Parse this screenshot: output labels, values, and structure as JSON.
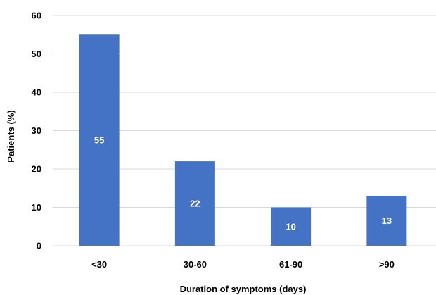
{
  "chart_data": {
    "type": "bar",
    "categories": [
      "<30",
      "30-60",
      "61-90",
      ">90"
    ],
    "values": [
      55,
      22,
      10,
      13
    ],
    "data_labels": [
      "55",
      "22",
      "10",
      "13"
    ],
    "title": "",
    "xlabel": "Duration of symptoms (days)",
    "ylabel": "Patients (%)",
    "ylim": [
      0,
      60
    ],
    "yticks": [
      0,
      10,
      20,
      30,
      40,
      50,
      60
    ],
    "grid": true,
    "legend": "none",
    "bar_color": "#4472c4",
    "data_label_color": "#ffffff"
  }
}
